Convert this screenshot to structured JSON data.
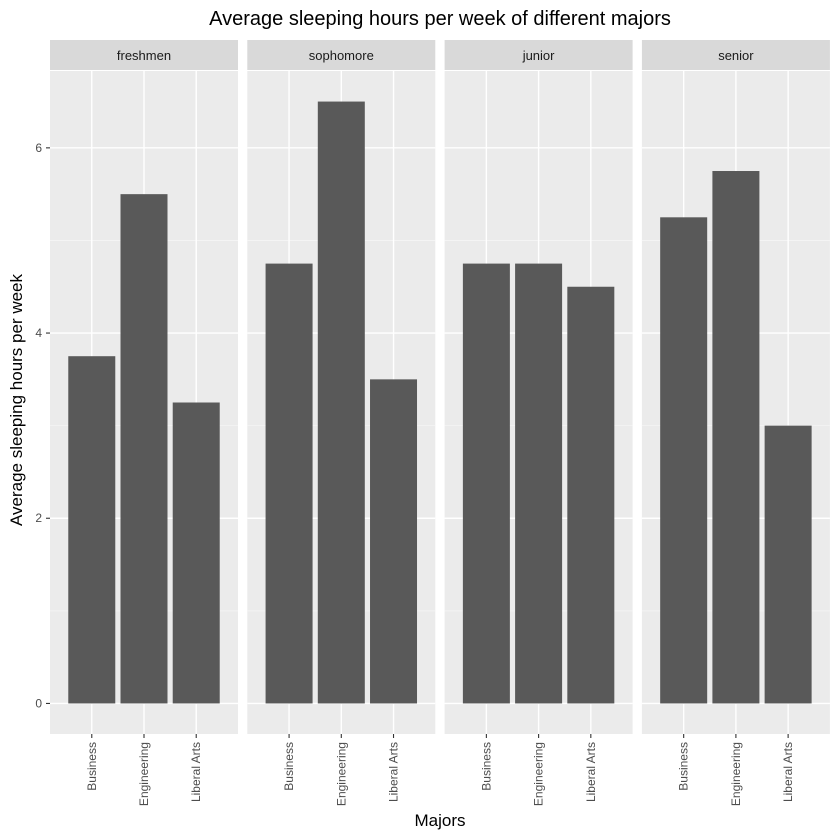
{
  "chart_data": {
    "type": "bar",
    "title": "Average sleeping hours per week of different majors",
    "xlabel": "Majors",
    "ylabel": "Average sleeping hours per week",
    "categories": [
      "Business",
      "Engineering",
      "Liberal Arts"
    ],
    "facets": [
      {
        "name": "freshmen",
        "values": [
          3.75,
          5.5,
          3.25
        ]
      },
      {
        "name": "sophomore",
        "values": [
          4.75,
          6.5,
          3.5
        ]
      },
      {
        "name": "junior",
        "values": [
          4.75,
          4.75,
          4.5
        ]
      },
      {
        "name": "senior",
        "values": [
          5.25,
          5.75,
          3.0
        ]
      }
    ],
    "yticks": [
      0,
      2,
      4,
      6
    ],
    "ylim": [
      -0.33,
      6.83
    ],
    "grid": true,
    "colors": {
      "bar": "#595959",
      "panel_bg": "#ebebeb",
      "strip_bg": "#d9d9d9",
      "grid_major": "#ffffff",
      "grid_minor": "#f5f5f5"
    }
  }
}
